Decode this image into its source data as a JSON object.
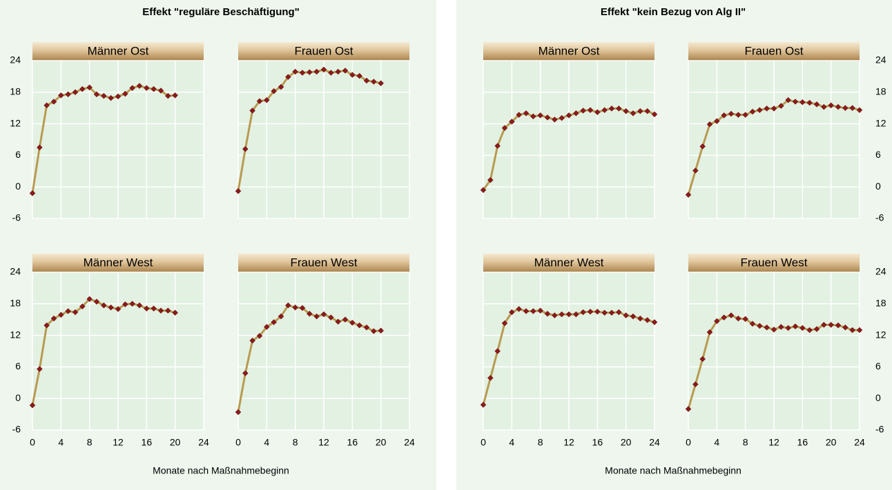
{
  "chart_data": [
    {
      "type": "line",
      "title": "Effekt \"reguläre Beschäftigung\"",
      "x_label": "Monate nach Maßnahmebeginn",
      "xlim": [
        0,
        24
      ],
      "xticks": [
        0,
        4,
        8,
        12,
        16,
        20,
        24
      ],
      "ylim": [
        -6,
        24
      ],
      "yticks": [
        24,
        18,
        12,
        6,
        0,
        -6
      ],
      "ytick_side": "left",
      "grid": true,
      "color": "#b89a50",
      "marker_color": "#8b1a1a",
      "x": [
        0,
        1,
        2,
        3,
        4,
        5,
        6,
        7,
        8,
        9,
        10,
        11,
        12,
        13,
        14,
        15,
        16,
        17,
        18,
        19,
        20
      ],
      "panels": [
        {
          "name": "Männer Ost",
          "values": [
            -1.2,
            7.5,
            15.5,
            16.2,
            17.4,
            17.6,
            18.0,
            18.6,
            18.9,
            17.6,
            17.3,
            16.9,
            17.2,
            17.7,
            18.8,
            19.2,
            18.8,
            18.6,
            18.3,
            17.3,
            17.4
          ]
        },
        {
          "name": "Frauen Ost",
          "values": [
            -0.8,
            7.2,
            14.5,
            16.3,
            16.5,
            18.2,
            19.0,
            20.9,
            21.9,
            21.7,
            21.8,
            21.9,
            22.3,
            21.7,
            21.9,
            22.1,
            21.3,
            21.1,
            20.2,
            20.0,
            19.7
          ]
        },
        {
          "name": "Männer West",
          "values": [
            -1.3,
            5.6,
            13.9,
            15.2,
            15.9,
            16.6,
            16.4,
            17.5,
            18.9,
            18.4,
            17.7,
            17.3,
            17.0,
            17.9,
            18.0,
            17.7,
            17.1,
            17.1,
            16.7,
            16.7,
            16.3
          ]
        },
        {
          "name": "Frauen West",
          "values": [
            -2.6,
            4.8,
            11.0,
            11.9,
            13.6,
            14.5,
            15.6,
            17.7,
            17.3,
            17.2,
            16.1,
            15.6,
            16.0,
            15.4,
            14.6,
            15.0,
            14.4,
            13.9,
            13.5,
            12.8,
            12.9
          ]
        }
      ]
    },
    {
      "type": "line",
      "title": "Effekt \"kein Bezug von Alg II\"",
      "x_label": "Monate nach Maßnahmebeginn",
      "xlim": [
        0,
        24
      ],
      "xticks": [
        0,
        4,
        8,
        12,
        16,
        20,
        24
      ],
      "ylim": [
        -6,
        24
      ],
      "yticks": [
        24,
        18,
        12,
        6,
        0,
        -6
      ],
      "ytick_side": "right",
      "grid": true,
      "color": "#b89a50",
      "marker_color": "#8b1a1a",
      "x": [
        0,
        1,
        2,
        3,
        4,
        5,
        6,
        7,
        8,
        9,
        10,
        11,
        12,
        13,
        14,
        15,
        16,
        17,
        18,
        19,
        20,
        21,
        22,
        23,
        24
      ],
      "panels": [
        {
          "name": "Männer Ost",
          "values": [
            -0.6,
            1.3,
            7.8,
            11.2,
            12.4,
            13.7,
            14.0,
            13.4,
            13.6,
            13.2,
            12.8,
            13.1,
            13.6,
            14.0,
            14.5,
            14.6,
            14.2,
            14.6,
            14.9,
            14.9,
            14.4,
            14.0,
            14.4,
            14.4,
            13.8
          ]
        },
        {
          "name": "Frauen Ost",
          "values": [
            -1.5,
            3.1,
            7.7,
            11.9,
            12.5,
            13.6,
            13.9,
            13.7,
            13.7,
            14.3,
            14.6,
            14.9,
            14.9,
            15.4,
            16.5,
            16.2,
            16.1,
            16.0,
            15.7,
            15.2,
            15.5,
            15.2,
            15.0,
            15.0,
            14.6
          ]
        },
        {
          "name": "Männer West",
          "values": [
            -1.2,
            3.9,
            9.0,
            14.3,
            16.4,
            17.0,
            16.6,
            16.6,
            16.7,
            16.1,
            15.8,
            16.0,
            16.0,
            16.0,
            16.4,
            16.5,
            16.5,
            16.3,
            16.3,
            16.4,
            15.8,
            15.6,
            15.2,
            14.9,
            14.5
          ]
        },
        {
          "name": "Frauen West",
          "values": [
            -2.0,
            2.7,
            7.5,
            12.6,
            14.7,
            15.4,
            15.8,
            15.2,
            15.1,
            14.2,
            13.8,
            13.5,
            13.1,
            13.6,
            13.4,
            13.7,
            13.4,
            13.0,
            13.2,
            14.0,
            14.0,
            13.9,
            13.5,
            13.0,
            13.0
          ]
        }
      ]
    }
  ]
}
